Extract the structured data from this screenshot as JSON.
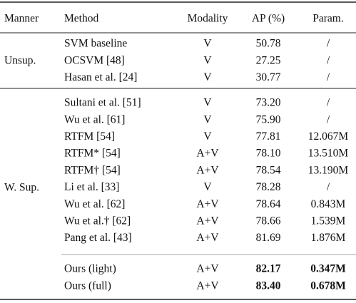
{
  "table": {
    "header": [
      "Manner",
      "Method",
      "Modality",
      "AP (%)",
      "Param."
    ],
    "groups": [
      {
        "manner": "Unsup.",
        "rows": [
          [
            "SVM baseline",
            "V",
            "50.78",
            "/"
          ],
          [
            "OCSVM [48]",
            "V",
            "27.25",
            "/"
          ],
          [
            "Hasan et al. [24]",
            "V",
            "30.77",
            "/"
          ]
        ]
      },
      {
        "manner": "W. Sup.",
        "rows": [
          [
            "Sultani et al. [51]",
            "V",
            "73.20",
            "/"
          ],
          [
            "Wu et al. [61]",
            "V",
            "75.90",
            "/"
          ],
          [
            "RTFM [54]",
            "V",
            "77.81",
            "12.067M"
          ],
          [
            "RTFM* [54]",
            "A+V",
            "78.10",
            "13.510M"
          ],
          [
            "RTFM† [54]",
            "A+V",
            "78.54",
            "13.190M"
          ],
          [
            "Li et al. [33]",
            "V",
            "78.28",
            "/"
          ],
          [
            "Wu et al. [62]",
            "A+V",
            "78.64",
            "0.843M"
          ],
          [
            "Wu et al.† [62]",
            "A+V",
            "78.66",
            "1.539M"
          ],
          [
            "Pang et al. [43]",
            "A+V",
            "81.69",
            "1.876M"
          ],
          [
            "Ours (light)",
            "A+V",
            "82.17",
            "0.347M"
          ],
          [
            "Ours (full)",
            "A+V",
            "83.40",
            "0.678M"
          ]
        ]
      }
    ]
  }
}
